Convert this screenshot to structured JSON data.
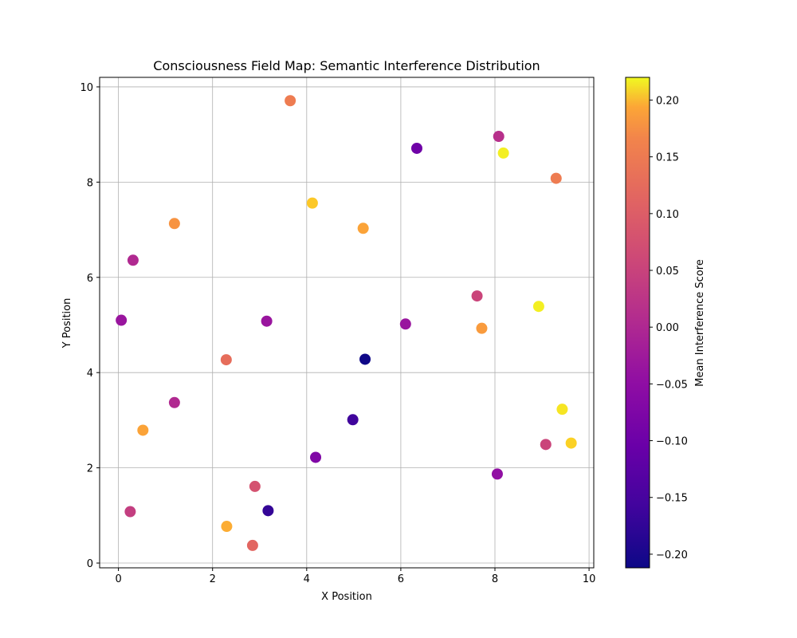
{
  "chart_data": {
    "type": "scatter",
    "title": "Consciousness Field Map: Semantic Interference Distribution",
    "xlabel": "X Position",
    "ylabel": "Y Position",
    "xlim": [
      -0.4,
      10.1
    ],
    "ylim": [
      -0.1,
      10.2
    ],
    "xticks": [
      0,
      2,
      4,
      6,
      8,
      10
    ],
    "yticks": [
      0,
      2,
      4,
      6,
      8,
      10
    ],
    "grid": true,
    "colormap": "plasma",
    "colorbar": {
      "label": "Mean Interference Score",
      "range": [
        -0.212,
        0.22
      ],
      "ticks": [
        -0.2,
        -0.15,
        -0.1,
        -0.05,
        0.0,
        0.05,
        0.1,
        0.15,
        0.2
      ],
      "tick_labels": [
        "−0.20",
        "−0.15",
        "−0.10",
        "−0.05",
        "0.00",
        "0.05",
        "0.10",
        "0.15",
        "0.20"
      ]
    },
    "points": [
      {
        "x": 3.65,
        "y": 9.71,
        "c": 0.08
      },
      {
        "x": 6.34,
        "y": 8.71,
        "c": -0.12
      },
      {
        "x": 8.08,
        "y": 8.96,
        "c": -0.03
      },
      {
        "x": 8.18,
        "y": 8.61,
        "c": 0.21
      },
      {
        "x": 9.3,
        "y": 8.08,
        "c": 0.08
      },
      {
        "x": 4.12,
        "y": 7.56,
        "c": 0.17
      },
      {
        "x": 5.2,
        "y": 7.03,
        "c": 0.13
      },
      {
        "x": 1.19,
        "y": 7.13,
        "c": 0.11
      },
      {
        "x": 0.31,
        "y": 6.36,
        "c": -0.04
      },
      {
        "x": 7.62,
        "y": 5.61,
        "c": 0.0
      },
      {
        "x": 8.93,
        "y": 5.39,
        "c": 0.21
      },
      {
        "x": 7.72,
        "y": 4.93,
        "c": 0.12
      },
      {
        "x": 0.06,
        "y": 5.1,
        "c": -0.07
      },
      {
        "x": 3.15,
        "y": 5.08,
        "c": -0.07
      },
      {
        "x": 6.1,
        "y": 5.02,
        "c": -0.07
      },
      {
        "x": 5.24,
        "y": 4.28,
        "c": -0.21
      },
      {
        "x": 2.29,
        "y": 4.27,
        "c": 0.06
      },
      {
        "x": 1.19,
        "y": 3.37,
        "c": -0.04
      },
      {
        "x": 0.52,
        "y": 2.79,
        "c": 0.13
      },
      {
        "x": 4.98,
        "y": 3.01,
        "c": -0.17
      },
      {
        "x": 9.43,
        "y": 3.23,
        "c": 0.2
      },
      {
        "x": 9.08,
        "y": 2.49,
        "c": 0.0
      },
      {
        "x": 9.62,
        "y": 2.52,
        "c": 0.18
      },
      {
        "x": 4.19,
        "y": 2.22,
        "c": -0.1
      },
      {
        "x": 8.05,
        "y": 1.87,
        "c": -0.08
      },
      {
        "x": 2.9,
        "y": 1.61,
        "c": 0.02
      },
      {
        "x": 3.18,
        "y": 1.1,
        "c": -0.18
      },
      {
        "x": 0.25,
        "y": 1.08,
        "c": -0.01
      },
      {
        "x": 2.3,
        "y": 0.77,
        "c": 0.14
      },
      {
        "x": 2.85,
        "y": 0.37,
        "c": 0.05
      }
    ]
  }
}
